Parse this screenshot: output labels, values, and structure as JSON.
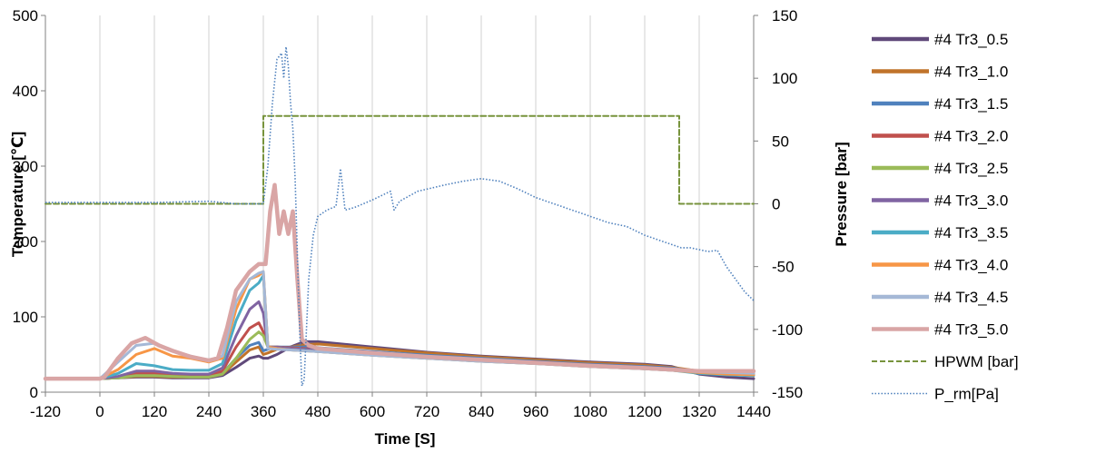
{
  "chart_data": {
    "type": "line",
    "xlabel": "Time [S]",
    "ylabel": "Temperature [℃]",
    "y2label": "Pressure [bar]",
    "xlim": [
      -120,
      1440
    ],
    "ylim": [
      0,
      500
    ],
    "y2lim": [
      -150,
      150
    ],
    "xticks": [
      -120,
      0,
      120,
      240,
      360,
      480,
      600,
      720,
      840,
      960,
      1080,
      1200,
      1320,
      1440
    ],
    "yticks": [
      0,
      100,
      200,
      300,
      400,
      500
    ],
    "y2ticks": [
      -150,
      -100,
      -50,
      0,
      50,
      100,
      150
    ],
    "grid": "vertical",
    "legend": "right",
    "series": [
      {
        "name": "#4 Tr3_0.5",
        "color": "#60497a",
        "axis": "left",
        "style": "solid",
        "x": [
          -120,
          0,
          40,
          80,
          120,
          160,
          200,
          240,
          270,
          300,
          330,
          350,
          360,
          370,
          390,
          420,
          450,
          480,
          600,
          720,
          840,
          960,
          1080,
          1200,
          1260,
          1320,
          1380,
          1440
        ],
        "y": [
          18,
          18,
          19,
          20,
          20,
          19,
          19,
          19,
          22,
          33,
          45,
          48,
          45,
          45,
          50,
          60,
          67,
          67,
          60,
          53,
          48,
          44,
          40,
          37,
          34,
          24,
          20,
          18
        ]
      },
      {
        "name": "#4 Tr3_1.0",
        "color": "#c0732a",
        "axis": "left",
        "style": "solid",
        "x": [
          -120,
          0,
          40,
          80,
          120,
          160,
          200,
          240,
          270,
          300,
          330,
          350,
          360,
          370,
          390,
          420,
          450,
          480,
          600,
          720,
          840,
          960,
          1080,
          1200,
          1260,
          1320,
          1380,
          1440
        ],
        "y": [
          18,
          18,
          19,
          21,
          21,
          20,
          20,
          20,
          24,
          40,
          56,
          60,
          50,
          52,
          57,
          60,
          63,
          64,
          58,
          52,
          47,
          43,
          39,
          36,
          33,
          28,
          26,
          25
        ]
      },
      {
        "name": "#4 Tr3_1.5",
        "color": "#4f81bd",
        "axis": "left",
        "style": "solid",
        "x": [
          -120,
          0,
          40,
          80,
          120,
          160,
          200,
          240,
          270,
          300,
          330,
          350,
          360,
          370,
          390,
          420,
          450,
          480,
          600,
          720,
          840,
          960,
          1080,
          1200,
          1260,
          1320,
          1380,
          1440
        ],
        "y": [
          18,
          18,
          19,
          22,
          22,
          21,
          21,
          21,
          25,
          45,
          62,
          66,
          55,
          57,
          60,
          60,
          60,
          59,
          54,
          49,
          45,
          41,
          37,
          34,
          32,
          27,
          25,
          24
        ]
      },
      {
        "name": "#4 Tr3_2.0",
        "color": "#c0504d",
        "axis": "left",
        "style": "solid",
        "x": [
          -120,
          0,
          40,
          80,
          120,
          160,
          200,
          240,
          270,
          300,
          330,
          350,
          360,
          370,
          390,
          420,
          450,
          480,
          600,
          720,
          840,
          960,
          1080,
          1200,
          1260,
          1320,
          1380,
          1440
        ],
        "y": [
          18,
          18,
          20,
          25,
          25,
          23,
          22,
          22,
          28,
          60,
          85,
          92,
          80,
          60,
          60,
          59,
          58,
          57,
          52,
          47,
          43,
          40,
          36,
          33,
          31,
          27,
          25,
          24
        ]
      },
      {
        "name": "#4 Tr3_2.5",
        "color": "#9bbb59",
        "axis": "left",
        "style": "solid",
        "x": [
          -120,
          0,
          40,
          80,
          120,
          160,
          200,
          240,
          270,
          300,
          330,
          350,
          360,
          370,
          390,
          420,
          450,
          480,
          600,
          720,
          840,
          960,
          1080,
          1200,
          1260,
          1320,
          1380,
          1440
        ],
        "y": [
          18,
          18,
          19,
          22,
          22,
          21,
          20,
          20,
          24,
          45,
          70,
          80,
          75,
          60,
          60,
          58,
          57,
          56,
          51,
          46,
          42,
          39,
          35,
          32,
          30,
          26,
          24,
          23
        ]
      },
      {
        "name": "#4 Tr3_3.0",
        "color": "#8064a2",
        "axis": "left",
        "style": "solid",
        "x": [
          -120,
          0,
          40,
          80,
          120,
          160,
          200,
          240,
          270,
          300,
          330,
          350,
          360,
          370,
          390,
          420,
          450,
          480,
          600,
          720,
          840,
          960,
          1080,
          1200,
          1260,
          1320,
          1380,
          1440
        ],
        "y": [
          18,
          18,
          21,
          28,
          28,
          25,
          24,
          24,
          32,
          75,
          110,
          120,
          105,
          60,
          60,
          58,
          57,
          56,
          51,
          46,
          42,
          39,
          35,
          32,
          30,
          26,
          24,
          23
        ]
      },
      {
        "name": "#4 Tr3_3.5",
        "color": "#4bacc6",
        "axis": "left",
        "style": "solid",
        "x": [
          -120,
          0,
          40,
          80,
          120,
          160,
          200,
          240,
          270,
          300,
          330,
          350,
          360,
          370,
          390,
          420,
          450,
          480,
          600,
          720,
          840,
          960,
          1080,
          1200,
          1260,
          1320,
          1380,
          1440
        ],
        "y": [
          18,
          18,
          25,
          38,
          35,
          30,
          29,
          29,
          38,
          95,
          135,
          145,
          155,
          60,
          58,
          56,
          55,
          54,
          49,
          45,
          41,
          38,
          34,
          31,
          29,
          25,
          23,
          22
        ]
      },
      {
        "name": "#4 Tr3_4.0",
        "color": "#f79646",
        "axis": "left",
        "style": "solid",
        "x": [
          -120,
          0,
          40,
          80,
          120,
          160,
          200,
          240,
          270,
          300,
          330,
          350,
          360,
          370,
          390,
          420,
          450,
          480,
          600,
          720,
          840,
          960,
          1080,
          1200,
          1260,
          1320,
          1380,
          1440
        ],
        "y": [
          18,
          18,
          30,
          50,
          58,
          48,
          45,
          40,
          45,
          110,
          150,
          155,
          160,
          60,
          58,
          56,
          55,
          54,
          49,
          45,
          41,
          38,
          34,
          31,
          29,
          26,
          24,
          23
        ]
      },
      {
        "name": "#4 Tr3_4.5",
        "color": "#a5b8d6",
        "axis": "left",
        "style": "solid",
        "x": [
          -120,
          0,
          40,
          80,
          120,
          160,
          200,
          240,
          270,
          300,
          330,
          350,
          360,
          370,
          390,
          420,
          450,
          480,
          600,
          720,
          840,
          960,
          1080,
          1200,
          1260,
          1320,
          1380,
          1440
        ],
        "y": [
          18,
          18,
          40,
          62,
          65,
          55,
          48,
          42,
          48,
          120,
          150,
          158,
          160,
          58,
          57,
          56,
          55,
          54,
          49,
          45,
          41,
          38,
          34,
          31,
          29,
          27,
          26,
          25
        ]
      },
      {
        "name": "#4 Tr3_5.0",
        "color": "#d9a5a5",
        "axis": "left",
        "style": "solid",
        "x": [
          -120,
          0,
          10,
          40,
          70,
          100,
          130,
          160,
          200,
          240,
          260,
          280,
          300,
          330,
          350,
          365,
          375,
          385,
          395,
          405,
          415,
          425,
          435,
          445,
          460,
          480,
          600,
          720,
          840,
          960,
          1080,
          1200,
          1260,
          1320,
          1380,
          1440
        ],
        "y": [
          18,
          18,
          20,
          45,
          65,
          72,
          62,
          55,
          47,
          42,
          45,
          85,
          135,
          160,
          170,
          170,
          240,
          275,
          210,
          240,
          210,
          240,
          150,
          70,
          62,
          58,
          52,
          47,
          43,
          39,
          35,
          32,
          30,
          28,
          28,
          28
        ]
      },
      {
        "name": "HPWM [bar]",
        "color": "#77933c",
        "axis": "right",
        "style": "dashed",
        "x": [
          -120,
          360,
          360,
          1276,
          1276,
          1440
        ],
        "y": [
          0,
          0,
          70,
          70,
          0,
          0
        ]
      },
      {
        "name": "P_rm[Pa]",
        "color": "#4f81bd",
        "axis": "right",
        "style": "dotted",
        "x": [
          -120,
          0,
          120,
          240,
          300,
          340,
          360,
          370,
          380,
          390,
          400,
          405,
          410,
          415,
          420,
          425,
          430,
          435,
          440,
          445,
          450,
          460,
          470,
          480,
          500,
          520,
          530,
          540,
          560,
          600,
          640,
          648,
          660,
          700,
          760,
          800,
          840,
          880,
          920,
          960,
          1000,
          1040,
          1080,
          1120,
          1160,
          1200,
          1240,
          1280,
          1300,
          1340,
          1360,
          1380,
          1400,
          1420,
          1440
        ],
        "y": [
          1,
          1,
          1,
          2,
          0,
          0,
          0,
          30,
          80,
          115,
          120,
          100,
          125,
          110,
          80,
          60,
          20,
          -40,
          -100,
          -145,
          -140,
          -60,
          -25,
          -10,
          -5,
          -2,
          28,
          -5,
          -3,
          3,
          10,
          -5,
          2,
          10,
          15,
          18,
          20,
          18,
          12,
          5,
          0,
          -5,
          -10,
          -15,
          -18,
          -25,
          -30,
          -35,
          -35,
          -38,
          -37,
          -50,
          -60,
          -70,
          -77
        ]
      }
    ]
  }
}
